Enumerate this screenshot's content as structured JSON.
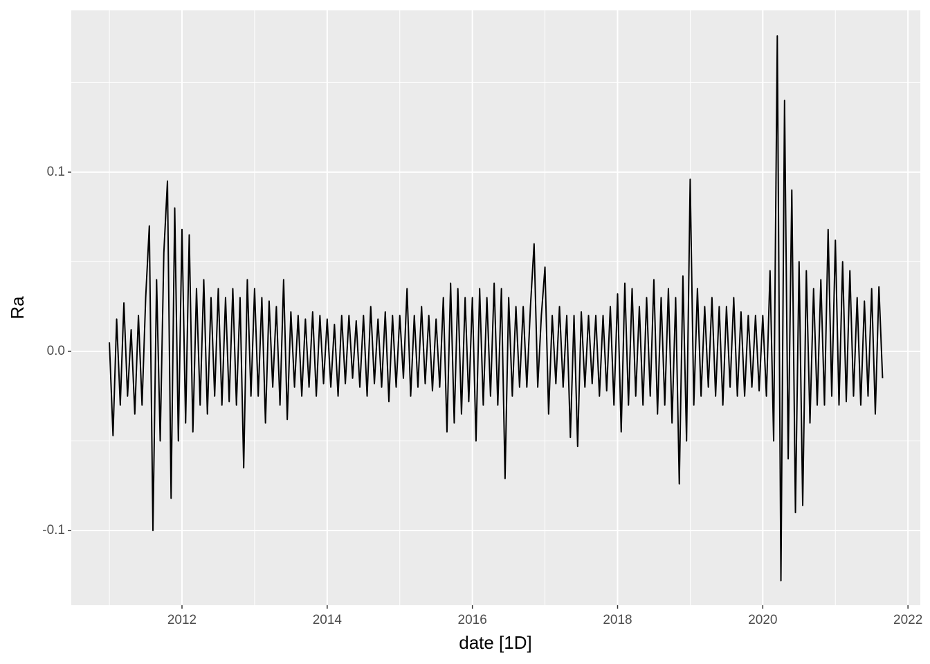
{
  "chart_data": {
    "type": "line",
    "xlabel": "date [1D]",
    "ylabel": "Ra",
    "color": "#000000",
    "grid": true,
    "xlim": [
      2010.475,
      2022.17
    ],
    "ylim": [
      -0.1417,
      0.1903
    ],
    "xticks": [
      2012,
      2014,
      2016,
      2018,
      2020,
      2022
    ],
    "yticks": [
      -0.1,
      {
        "value": 0,
        "label": "0.0"
      },
      0.1
    ],
    "x": [
      2011.0,
      2011.05,
      2011.1,
      2011.15,
      2011.2,
      2011.25,
      2011.3,
      2011.35,
      2011.4,
      2011.45,
      2011.5,
      2011.55,
      2011.6,
      2011.65,
      2011.7,
      2011.75,
      2011.8,
      2011.85,
      2011.9,
      2011.95,
      2012.0,
      2012.05,
      2012.1,
      2012.15,
      2012.2,
      2012.25,
      2012.3,
      2012.35,
      2012.4,
      2012.45,
      2012.5,
      2012.55,
      2012.6,
      2012.65,
      2012.7,
      2012.75,
      2012.8,
      2012.85,
      2012.9,
      2012.95,
      2013.0,
      2013.05,
      2013.1,
      2013.15,
      2013.2,
      2013.25,
      2013.3,
      2013.35,
      2013.4,
      2013.45,
      2013.5,
      2013.55,
      2013.6,
      2013.65,
      2013.7,
      2013.75,
      2013.8,
      2013.85,
      2013.9,
      2013.95,
      2014.0,
      2014.05,
      2014.1,
      2014.15,
      2014.2,
      2014.25,
      2014.3,
      2014.35,
      2014.4,
      2014.45,
      2014.5,
      2014.55,
      2014.6,
      2014.65,
      2014.7,
      2014.75,
      2014.8,
      2014.85,
      2014.9,
      2014.95,
      2015.0,
      2015.05,
      2015.1,
      2015.15,
      2015.2,
      2015.25,
      2015.3,
      2015.35,
      2015.4,
      2015.45,
      2015.5,
      2015.55,
      2015.6,
      2015.65,
      2015.7,
      2015.75,
      2015.8,
      2015.85,
      2015.9,
      2015.95,
      2016.0,
      2016.05,
      2016.1,
      2016.15,
      2016.2,
      2016.25,
      2016.3,
      2016.35,
      2016.4,
      2016.45,
      2016.5,
      2016.55,
      2016.6,
      2016.65,
      2016.7,
      2016.75,
      2016.8,
      2016.85,
      2016.9,
      2016.95,
      2017.0,
      2017.05,
      2017.1,
      2017.15,
      2017.2,
      2017.25,
      2017.3,
      2017.35,
      2017.4,
      2017.45,
      2017.5,
      2017.55,
      2017.6,
      2017.65,
      2017.7,
      2017.75,
      2017.8,
      2017.85,
      2017.9,
      2017.95,
      2018.0,
      2018.05,
      2018.1,
      2018.15,
      2018.2,
      2018.25,
      2018.3,
      2018.35,
      2018.4,
      2018.45,
      2018.5,
      2018.55,
      2018.6,
      2018.65,
      2018.7,
      2018.75,
      2018.8,
      2018.85,
      2018.9,
      2018.95,
      2019.0,
      2019.05,
      2019.1,
      2019.15,
      2019.2,
      2019.25,
      2019.3,
      2019.35,
      2019.4,
      2019.45,
      2019.5,
      2019.55,
      2019.6,
      2019.65,
      2019.7,
      2019.75,
      2019.8,
      2019.85,
      2019.9,
      2019.95,
      2020.0,
      2020.05,
      2020.1,
      2020.15,
      2020.2,
      2020.25,
      2020.3,
      2020.35,
      2020.4,
      2020.45,
      2020.5,
      2020.55,
      2020.6,
      2020.65,
      2020.7,
      2020.75,
      2020.8,
      2020.85,
      2020.9,
      2020.95,
      2021.0,
      2021.05,
      2021.1,
      2021.15,
      2021.2,
      2021.25,
      2021.3,
      2021.35,
      2021.4,
      2021.45,
      2021.5,
      2021.55,
      2021.6,
      2021.65
    ],
    "values": [
      0.005,
      -0.047,
      0.018,
      -0.03,
      0.027,
      -0.025,
      0.012,
      -0.035,
      0.02,
      -0.03,
      0.03,
      0.07,
      -0.1,
      0.04,
      -0.05,
      0.055,
      0.095,
      -0.082,
      0.08,
      -0.05,
      0.068,
      -0.04,
      0.065,
      -0.045,
      0.035,
      -0.03,
      0.04,
      -0.035,
      0.03,
      -0.025,
      0.035,
      -0.03,
      0.03,
      -0.028,
      0.035,
      -0.03,
      0.03,
      -0.065,
      0.04,
      -0.025,
      0.035,
      -0.025,
      0.03,
      -0.04,
      0.028,
      -0.02,
      0.025,
      -0.03,
      0.04,
      -0.038,
      0.022,
      -0.02,
      0.02,
      -0.025,
      0.018,
      -0.02,
      0.022,
      -0.025,
      0.02,
      -0.018,
      0.018,
      -0.02,
      0.015,
      -0.025,
      0.02,
      -0.018,
      0.02,
      -0.015,
      0.017,
      -0.02,
      0.02,
      -0.025,
      0.025,
      -0.018,
      0.018,
      -0.02,
      0.022,
      -0.028,
      0.02,
      -0.02,
      0.02,
      -0.015,
      0.035,
      -0.025,
      0.02,
      -0.02,
      0.025,
      -0.018,
      0.02,
      -0.022,
      0.018,
      -0.02,
      0.03,
      -0.045,
      0.038,
      -0.04,
      0.035,
      -0.035,
      0.03,
      -0.028,
      0.03,
      -0.05,
      0.035,
      -0.03,
      0.03,
      -0.025,
      0.038,
      -0.03,
      0.035,
      -0.071,
      0.03,
      -0.025,
      0.025,
      -0.02,
      0.025,
      -0.02,
      0.025,
      0.06,
      -0.02,
      0.02,
      0.047,
      -0.035,
      0.02,
      -0.018,
      0.025,
      -0.02,
      0.02,
      -0.048,
      0.02,
      -0.053,
      0.022,
      -0.02,
      0.02,
      -0.018,
      0.02,
      -0.025,
      0.02,
      -0.022,
      0.025,
      -0.03,
      0.032,
      -0.045,
      0.038,
      -0.03,
      0.035,
      -0.025,
      0.025,
      -0.03,
      0.03,
      -0.025,
      0.04,
      -0.035,
      0.03,
      -0.03,
      0.035,
      -0.04,
      0.03,
      -0.074,
      0.042,
      -0.05,
      0.096,
      -0.03,
      0.035,
      -0.025,
      0.025,
      -0.02,
      0.03,
      -0.025,
      0.025,
      -0.03,
      0.025,
      -0.02,
      0.03,
      -0.025,
      0.022,
      -0.025,
      0.02,
      -0.02,
      0.02,
      -0.022,
      0.02,
      -0.025,
      0.045,
      -0.05,
      0.176,
      -0.128,
      0.14,
      -0.06,
      0.09,
      -0.09,
      0.05,
      -0.086,
      0.045,
      -0.04,
      0.035,
      -0.03,
      0.04,
      -0.03,
      0.068,
      -0.025,
      0.062,
      -0.03,
      0.05,
      -0.028,
      0.045,
      -0.025,
      0.03,
      -0.03,
      0.028,
      -0.025,
      0.035,
      -0.035,
      0.036,
      -0.015
    ]
  }
}
